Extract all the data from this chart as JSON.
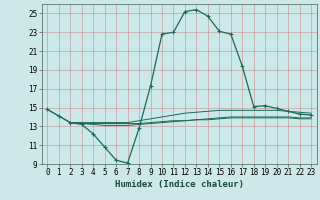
{
  "xlabel": "Humidex (Indice chaleur)",
  "bg_color": "#cce8e8",
  "grid_color": "#b0c8c8",
  "line_color": "#1a6b5a",
  "xlim": [
    -0.5,
    23.5
  ],
  "ylim": [
    9,
    26
  ],
  "xticks": [
    0,
    1,
    2,
    3,
    4,
    5,
    6,
    7,
    8,
    9,
    10,
    11,
    12,
    13,
    14,
    15,
    16,
    17,
    18,
    19,
    20,
    21,
    22,
    23
  ],
  "yticks": [
    9,
    11,
    13,
    15,
    17,
    19,
    21,
    23,
    25
  ],
  "line1_x": [
    0,
    1,
    2,
    3,
    4,
    5,
    6,
    7,
    8,
    9,
    10,
    11,
    12,
    13,
    14,
    15,
    16,
    17,
    18,
    19,
    20,
    21,
    22,
    23
  ],
  "line1_y": [
    14.8,
    14.1,
    13.4,
    13.2,
    12.2,
    10.8,
    9.4,
    9.1,
    12.8,
    17.3,
    22.8,
    23.0,
    25.2,
    25.4,
    24.7,
    23.1,
    22.8,
    19.4,
    15.1,
    15.2,
    14.9,
    14.6,
    14.3,
    14.2
  ],
  "line2_x": [
    0,
    1,
    2,
    3,
    4,
    5,
    6,
    7,
    8,
    9,
    10,
    11,
    12,
    13,
    14,
    15,
    16,
    17,
    18,
    19,
    20,
    21,
    22,
    23
  ],
  "line2_y": [
    14.8,
    14.1,
    13.4,
    13.4,
    13.4,
    13.4,
    13.4,
    13.4,
    13.6,
    13.8,
    14.0,
    14.2,
    14.4,
    14.5,
    14.6,
    14.7,
    14.7,
    14.7,
    14.7,
    14.7,
    14.7,
    14.6,
    14.5,
    14.4
  ],
  "line3_x": [
    2,
    3,
    4,
    5,
    6,
    7,
    8,
    9,
    10,
    11,
    12,
    13,
    14,
    15,
    16,
    17,
    18,
    19,
    20,
    21,
    22,
    23
  ],
  "line3_y": [
    13.4,
    13.3,
    13.2,
    13.1,
    13.1,
    13.1,
    13.2,
    13.3,
    13.4,
    13.5,
    13.6,
    13.7,
    13.8,
    13.9,
    14.0,
    14.0,
    14.0,
    14.0,
    14.0,
    14.0,
    13.9,
    13.9
  ],
  "line4_x": [
    2,
    3,
    4,
    5,
    6,
    7,
    8,
    9,
    10,
    11,
    12,
    13,
    14,
    15,
    16,
    17,
    18,
    19,
    20,
    21,
    22,
    23
  ],
  "line4_y": [
    13.4,
    13.3,
    13.3,
    13.3,
    13.3,
    13.3,
    13.3,
    13.4,
    13.5,
    13.6,
    13.6,
    13.7,
    13.7,
    13.8,
    13.9,
    13.9,
    13.9,
    13.9,
    13.9,
    13.9,
    13.8,
    13.8
  ],
  "font_size_ticks": 5.5,
  "font_size_xlabel": 6.5
}
